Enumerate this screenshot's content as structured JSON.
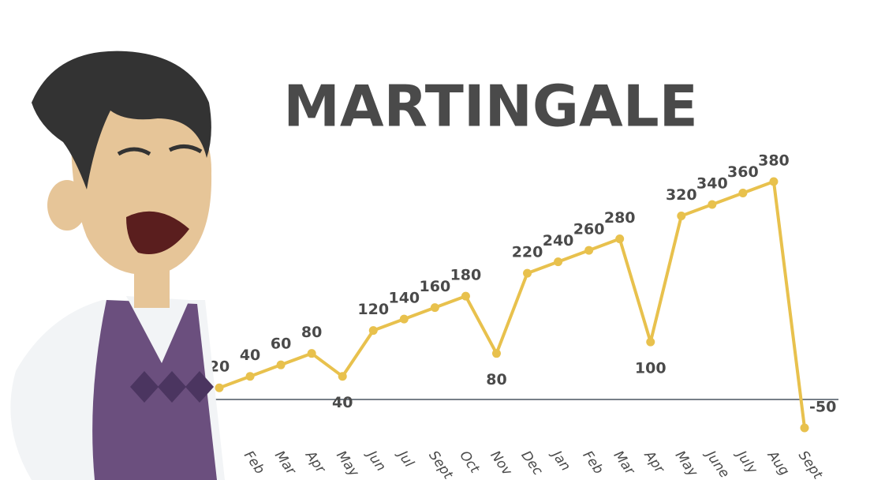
{
  "chart_data": {
    "type": "line",
    "title": "MARTINGALE",
    "categories": [
      null,
      "Feb",
      "Mar",
      "Apr",
      "May",
      "Jun",
      "Jul",
      "Sept",
      "Oct",
      "Nov",
      "Dec",
      "Jan",
      "Feb",
      "Mar",
      "Apr",
      "May",
      "June",
      "July",
      "Aug",
      "Sept"
    ],
    "series": [
      {
        "name": null,
        "color": "#e8c14d",
        "values": [
          20,
          40,
          60,
          80,
          40,
          120,
          140,
          160,
          180,
          80,
          220,
          240,
          260,
          280,
          100,
          320,
          340,
          360,
          380,
          -50
        ]
      }
    ]
  }
}
